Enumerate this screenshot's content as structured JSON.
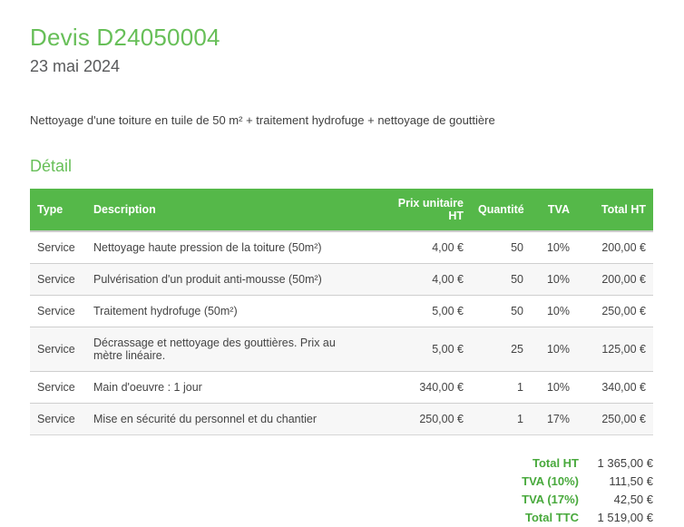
{
  "colors": {
    "accent_green": "#55b849",
    "title_green": "#67bf58",
    "totals_label_green": "#48a93c",
    "date_gray": "#58595b",
    "zebra_row": "#f7f7f7"
  },
  "header": {
    "title": "Devis D24050004",
    "date": "23 mai 2024"
  },
  "summary": "Nettoyage d'une toiture en tuile de 50 m² + traitement hydrofuge + nettoyage de gouttière",
  "section_title": "Détail",
  "table": {
    "columns": [
      "Type",
      "Description",
      "Prix unitaire HT",
      "Quantité",
      "TVA",
      "Total HT"
    ],
    "rows": [
      [
        "Service",
        "Nettoyage haute pression de la toiture (50m²)",
        "4,00 €",
        "50",
        "10%",
        "200,00 €"
      ],
      [
        "Service",
        "Pulvérisation d'un produit anti-mousse (50m²)",
        "4,00 €",
        "50",
        "10%",
        "200,00 €"
      ],
      [
        "Service",
        "Traitement hydrofuge (50m²)",
        "5,00 €",
        "50",
        "10%",
        "250,00 €"
      ],
      [
        "Service",
        "Décrassage et nettoyage des gouttières. Prix au mètre linéaire.",
        "5,00 €",
        "25",
        "10%",
        "125,00 €"
      ],
      [
        "Service",
        "Main d'oeuvre : 1 jour",
        "340,00 €",
        "1",
        "10%",
        "340,00 €"
      ],
      [
        "Service",
        "Mise en sécurité du personnel et du chantier",
        "250,00 €",
        "1",
        "17%",
        "250,00 €"
      ]
    ]
  },
  "totals": [
    {
      "label": "Total HT",
      "value": "1 365,00 €"
    },
    {
      "label": "TVA (10%)",
      "value": "111,50 €"
    },
    {
      "label": "TVA (17%)",
      "value": "42,50 €"
    },
    {
      "label": "Total TTC",
      "value": "1 519,00 €"
    }
  ]
}
